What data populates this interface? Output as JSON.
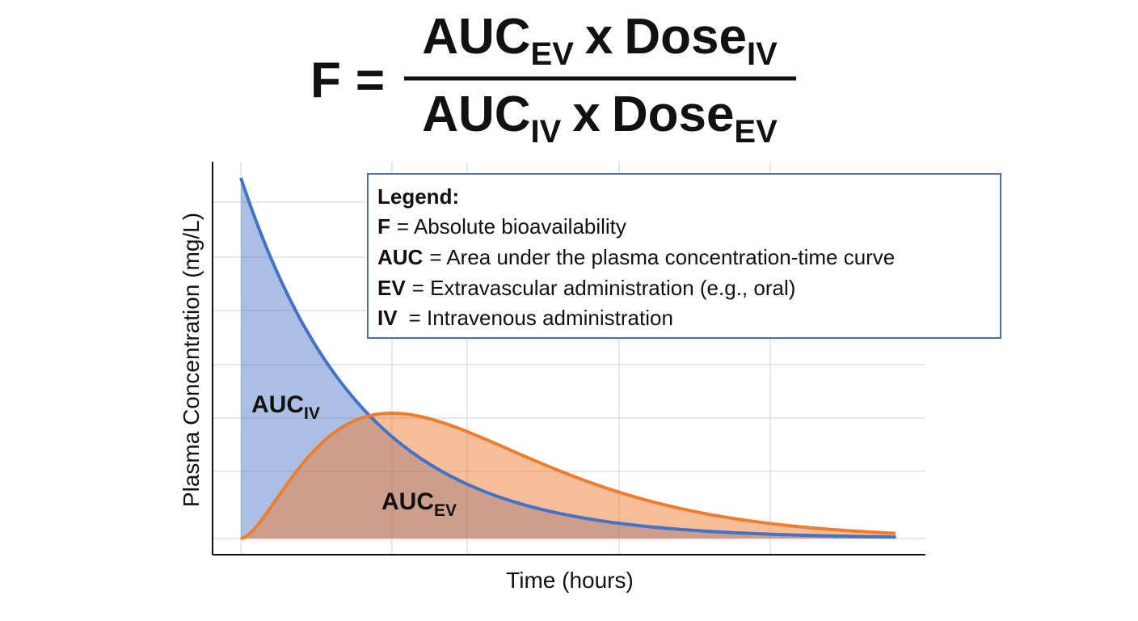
{
  "formula": {
    "lhs": "F",
    "equals": "=",
    "numerator": [
      {
        "text": "AUC",
        "sub": "EV"
      },
      {
        "text": "x"
      },
      {
        "text": "Dose",
        "sub": "IV"
      }
    ],
    "denominator": [
      {
        "text": "AUC",
        "sub": "IV"
      },
      {
        "text": "x"
      },
      {
        "text": "Dose",
        "sub": "EV"
      }
    ]
  },
  "legend": {
    "title": "Legend:",
    "entries": [
      {
        "term": "F",
        "definition": "= Absolute bioavailability"
      },
      {
        "term": "AUC",
        "definition": "= Area under the plasma concentration-time curve"
      },
      {
        "term": "EV",
        "definition": "= Extravascular administration (e.g., oral)"
      },
      {
        "term": "IV",
        "definition": "= Intravenous administration"
      }
    ]
  },
  "curve_labels": {
    "iv": {
      "text": "AUC",
      "sub": "IV"
    },
    "ev": {
      "text": "AUC",
      "sub": "EV"
    }
  },
  "axes": {
    "x_label": "Time (hours)",
    "y_label": "Plasma Concentration (mg/L)"
  }
}
